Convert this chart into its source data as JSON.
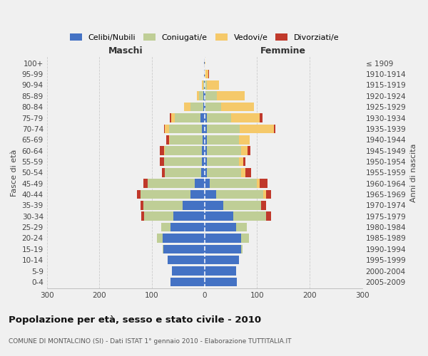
{
  "age_groups": [
    "0-4",
    "5-9",
    "10-14",
    "15-19",
    "20-24",
    "25-29",
    "30-34",
    "35-39",
    "40-44",
    "45-49",
    "50-54",
    "55-59",
    "60-64",
    "65-69",
    "70-74",
    "75-79",
    "80-84",
    "85-89",
    "90-94",
    "95-99",
    "100+"
  ],
  "birth_years": [
    "2005-2009",
    "2000-2004",
    "1995-1999",
    "1990-1994",
    "1985-1989",
    "1980-1984",
    "1975-1979",
    "1970-1974",
    "1965-1969",
    "1960-1964",
    "1955-1959",
    "1950-1954",
    "1945-1949",
    "1940-1944",
    "1935-1939",
    "1930-1934",
    "1925-1929",
    "1920-1924",
    "1915-1919",
    "1910-1914",
    "≤ 1909"
  ],
  "maschi_celibi": [
    65,
    62,
    70,
    78,
    80,
    65,
    60,
    42,
    27,
    18,
    6,
    5,
    5,
    4,
    5,
    8,
    2,
    2,
    1,
    1,
    1
  ],
  "maschi_coniugati": [
    0,
    0,
    0,
    2,
    10,
    18,
    55,
    75,
    95,
    90,
    70,
    72,
    70,
    62,
    62,
    48,
    25,
    8,
    2,
    0,
    0
  ],
  "maschi_vedovi": [
    0,
    0,
    0,
    0,
    0,
    0,
    0,
    0,
    0,
    0,
    0,
    0,
    2,
    2,
    8,
    8,
    12,
    5,
    2,
    0,
    0
  ],
  "maschi_divorziati": [
    0,
    0,
    0,
    0,
    0,
    0,
    5,
    5,
    6,
    8,
    5,
    8,
    8,
    5,
    2,
    2,
    0,
    0,
    0,
    0,
    0
  ],
  "femmine_nubili": [
    62,
    60,
    65,
    70,
    70,
    60,
    55,
    35,
    22,
    10,
    5,
    5,
    5,
    4,
    5,
    5,
    2,
    2,
    0,
    0,
    0
  ],
  "femmine_coniugate": [
    0,
    0,
    0,
    2,
    15,
    20,
    62,
    72,
    90,
    90,
    65,
    60,
    65,
    62,
    62,
    45,
    30,
    22,
    5,
    1,
    0
  ],
  "femmine_vedove": [
    0,
    0,
    0,
    0,
    0,
    0,
    0,
    0,
    5,
    5,
    8,
    8,
    12,
    20,
    65,
    55,
    62,
    52,
    22,
    6,
    2
  ],
  "femmine_divorziate": [
    0,
    0,
    0,
    0,
    0,
    0,
    10,
    10,
    10,
    15,
    10,
    5,
    5,
    0,
    2,
    5,
    0,
    0,
    0,
    1,
    0
  ],
  "color_celibi": "#4472C4",
  "color_coniugati": "#BFCE96",
  "color_vedovi": "#F5C96A",
  "color_divorziati": "#C0392B",
  "legend_labels": [
    "Celibi/Nubili",
    "Coniugati/e",
    "Vedovi/e",
    "Divorziati/e"
  ],
  "title": "Popolazione per età, sesso e stato civile - 2010",
  "subtitle": "COMUNE DI MONTALCINO (SI) - Dati ISTAT 1° gennaio 2010 - Elaborazione TUTTITALIA.IT",
  "label_maschi": "Maschi",
  "label_femmine": "Femmine",
  "label_fasce": "Fasce di età",
  "label_anni": "Anni di nascita",
  "bg_color": "#f0f0f0",
  "xlim": 300
}
